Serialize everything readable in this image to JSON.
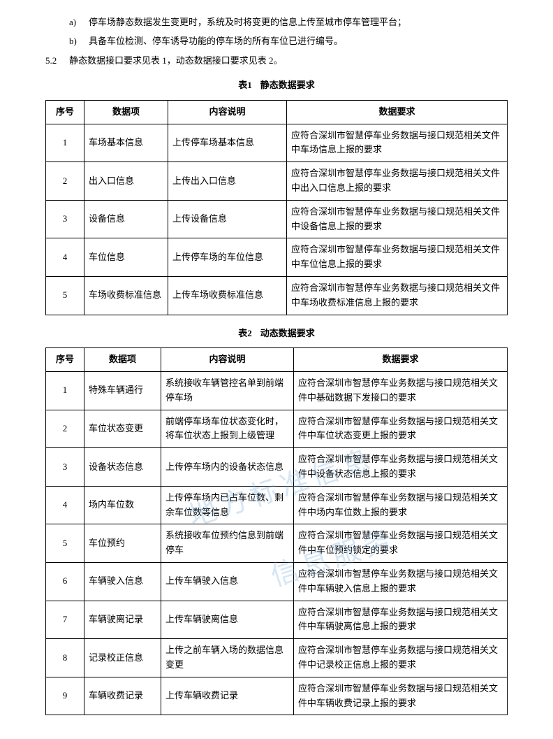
{
  "list": {
    "a": {
      "label": "a)",
      "text": "停车场静态数据发生变更时，系统及时将变更的信息上传至城市停车管理平台；"
    },
    "b": {
      "label": "b)",
      "text": "具备车位检测、停车诱导功能的停车场的所有车位已进行编号。"
    }
  },
  "section": {
    "num": "5.2",
    "text": "静态数据接口要求见表 1，动态数据接口要求见表 2。"
  },
  "table1": {
    "captionLabel": "表1",
    "captionText": "静态数据要求",
    "headers": {
      "c1": "序号",
      "c2": "数据项",
      "c3": "内容说明",
      "c4": "数据要求"
    },
    "colw": {
      "c1": "42px",
      "c2": "120px",
      "c3": "170px",
      "c4": "auto"
    },
    "rows": [
      {
        "idx": "1",
        "item": "车场基本信息",
        "desc": "上传停车场基本信息",
        "req": "应符合深圳市智慧停车业务数据与接口规范相关文件中车场信息上报的要求"
      },
      {
        "idx": "2",
        "item": "出入口信息",
        "desc": "上传出入口信息",
        "req": "应符合深圳市智慧停车业务数据与接口规范相关文件中出入口信息上报的要求"
      },
      {
        "idx": "3",
        "item": "设备信息",
        "desc": "上传设备信息",
        "req": "应符合深圳市智慧停车业务数据与接口规范相关文件中设备信息上报的要求"
      },
      {
        "idx": "4",
        "item": "车位信息",
        "desc": "上传停车场的车位信息",
        "req": "应符合深圳市智慧停车业务数据与接口规范相关文件中车位信息上报的要求"
      },
      {
        "idx": "5",
        "item": "车场收费标准信息",
        "desc": "上传车场收费标准信息",
        "req": "应符合深圳市智慧停车业务数据与接口规范相关文件中车场收费标准信息上报的要求"
      }
    ]
  },
  "table2": {
    "captionLabel": "表2",
    "captionText": "动态数据要求",
    "headers": {
      "c1": "序号",
      "c2": "数据项",
      "c3": "内容说明",
      "c4": "数据要求"
    },
    "colw": {
      "c1": "42px",
      "c2": "110px",
      "c3": "190px",
      "c4": "auto"
    },
    "rows": [
      {
        "idx": "1",
        "item": "特殊车辆通行",
        "desc": "系统接收车辆管控名单到前端停车场",
        "req": "应符合深圳市智慧停车业务数据与接口规范相关文件中基础数据下发接口的要求"
      },
      {
        "idx": "2",
        "item": "车位状态变更",
        "desc": "前端停车场车位状态变化时，将车位状态上报到上级管理",
        "req": "应符合深圳市智慧停车业务数据与接口规范相关文件中车位状态变更上报的要求"
      },
      {
        "idx": "3",
        "item": "设备状态信息",
        "desc": "上传停车场内的设备状态信息",
        "req": "应符合深圳市智慧停车业务数据与接口规范相关文件中设备状态信息上报的要求"
      },
      {
        "idx": "4",
        "item": "场内车位数",
        "desc": "上传停车场内已占车位数、剩余车位数等信息",
        "req": "应符合深圳市智慧停车业务数据与接口规范相关文件中场内车位数上报的要求"
      },
      {
        "idx": "5",
        "item": "车位预约",
        "desc": "系统接收车位预约信息到前端停车",
        "req": "应符合深圳市智慧停车业务数据与接口规范相关文件中车位预约锁定的要求"
      },
      {
        "idx": "6",
        "item": "车辆驶入信息",
        "desc": "上传车辆驶入信息",
        "req": "应符合深圳市智慧停车业务数据与接口规范相关文件中车辆驶入信息上报的要求"
      },
      {
        "idx": "7",
        "item": "车辆驶离记录",
        "desc": "上传车辆驶离信息",
        "req": "应符合深圳市智慧停车业务数据与接口规范相关文件中车辆驶离信息上报的要求"
      },
      {
        "idx": "8",
        "item": "记录校正信息",
        "desc": "上传之前车辆入场的数据信息变更",
        "req": "应符合深圳市智慧停车业务数据与接口规范相关文件中记录校正信息上报的要求"
      },
      {
        "idx": "9",
        "item": "车辆收费记录",
        "desc": "上传车辆收费记录",
        "req": "应符合深圳市智慧停车业务数据与接口规范相关文件中车辆收费记录上报的要求"
      }
    ]
  },
  "watermark": {
    "t1": "地方标准信息",
    "t2": "信息服务"
  }
}
